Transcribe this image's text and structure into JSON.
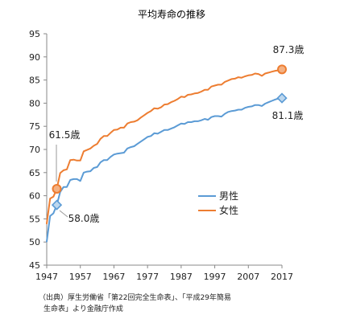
{
  "chart_data": {
    "type": "line",
    "title": "平均寿命の推移",
    "xlabel": "",
    "ylabel": "",
    "xlim": [
      1947,
      2017
    ],
    "ylim": [
      45,
      95
    ],
    "x_ticks": [
      1947,
      1957,
      1967,
      1977,
      1987,
      1997,
      2007,
      2017
    ],
    "y_ticks": [
      45,
      50,
      55,
      60,
      65,
      70,
      75,
      80,
      85,
      90,
      95
    ],
    "grid": false,
    "legend_position": "right-middle",
    "x": [
      1947,
      1948,
      1949,
      1950,
      1951,
      1952,
      1953,
      1954,
      1955,
      1956,
      1957,
      1958,
      1959,
      1960,
      1961,
      1962,
      1963,
      1964,
      1965,
      1966,
      1967,
      1968,
      1969,
      1970,
      1971,
      1972,
      1973,
      1974,
      1975,
      1976,
      1977,
      1978,
      1979,
      1980,
      1981,
      1982,
      1983,
      1984,
      1985,
      1986,
      1987,
      1988,
      1989,
      1990,
      1991,
      1992,
      1993,
      1994,
      1995,
      1996,
      1997,
      1998,
      1999,
      2000,
      2001,
      2002,
      2003,
      2004,
      2005,
      2006,
      2007,
      2008,
      2009,
      2010,
      2011,
      2012,
      2013,
      2014,
      2015,
      2016,
      2017
    ],
    "series": [
      {
        "name": "男性",
        "color": "#5b9bd5",
        "values": [
          50.1,
          55.6,
          56.2,
          58.0,
          60.8,
          61.9,
          61.9,
          63.4,
          63.6,
          63.6,
          63.2,
          65.0,
          65.2,
          65.3,
          66.0,
          66.2,
          67.2,
          67.7,
          67.7,
          68.4,
          68.9,
          69.1,
          69.2,
          69.3,
          70.2,
          70.5,
          70.7,
          71.2,
          71.7,
          72.2,
          72.7,
          72.9,
          73.5,
          73.4,
          73.8,
          74.2,
          74.2,
          74.5,
          74.8,
          75.2,
          75.6,
          75.5,
          75.9,
          75.9,
          76.1,
          76.1,
          76.3,
          76.6,
          76.4,
          77.0,
          77.2,
          77.2,
          77.1,
          77.7,
          78.1,
          78.3,
          78.4,
          78.6,
          78.6,
          79.0,
          79.2,
          79.3,
          79.6,
          79.6,
          79.4,
          79.9,
          80.2,
          80.5,
          80.8,
          81.0,
          81.1
        ]
      },
      {
        "name": "女性",
        "color": "#ed7d31",
        "values": [
          54.0,
          59.4,
          59.8,
          61.5,
          64.9,
          65.5,
          65.7,
          67.7,
          67.8,
          67.6,
          67.6,
          69.6,
          69.9,
          70.2,
          70.8,
          71.2,
          72.3,
          72.9,
          72.9,
          73.6,
          74.2,
          74.3,
          74.7,
          74.7,
          75.6,
          75.9,
          76.0,
          76.3,
          76.9,
          77.4,
          77.9,
          78.3,
          78.9,
          78.8,
          79.1,
          79.7,
          79.8,
          80.2,
          80.5,
          80.9,
          81.4,
          81.3,
          81.8,
          81.9,
          82.1,
          82.2,
          82.5,
          82.9,
          82.9,
          83.6,
          83.8,
          84.0,
          84.0,
          84.6,
          84.9,
          85.2,
          85.3,
          85.6,
          85.5,
          85.8,
          86.0,
          86.1,
          86.4,
          86.3,
          85.9,
          86.4,
          86.6,
          86.8,
          87.0,
          87.1,
          87.3
        ]
      }
    ],
    "annotations": [
      {
        "text": "87.3歳",
        "x": 2017,
        "y": 87.3,
        "series": "女性"
      },
      {
        "text": "81.1歳",
        "x": 2017,
        "y": 81.1,
        "series": "男性"
      },
      {
        "text": "61.5歳",
        "x": 1950,
        "y": 61.5,
        "series": "女性"
      },
      {
        "text": "58.0歳",
        "x": 1950,
        "y": 58.0,
        "series": "男性"
      }
    ]
  },
  "source": {
    "line1": "（出典）厚生労働省「第22回完全生命表」、「平成29年簡易",
    "line2": "生命表」より金融庁作成"
  }
}
